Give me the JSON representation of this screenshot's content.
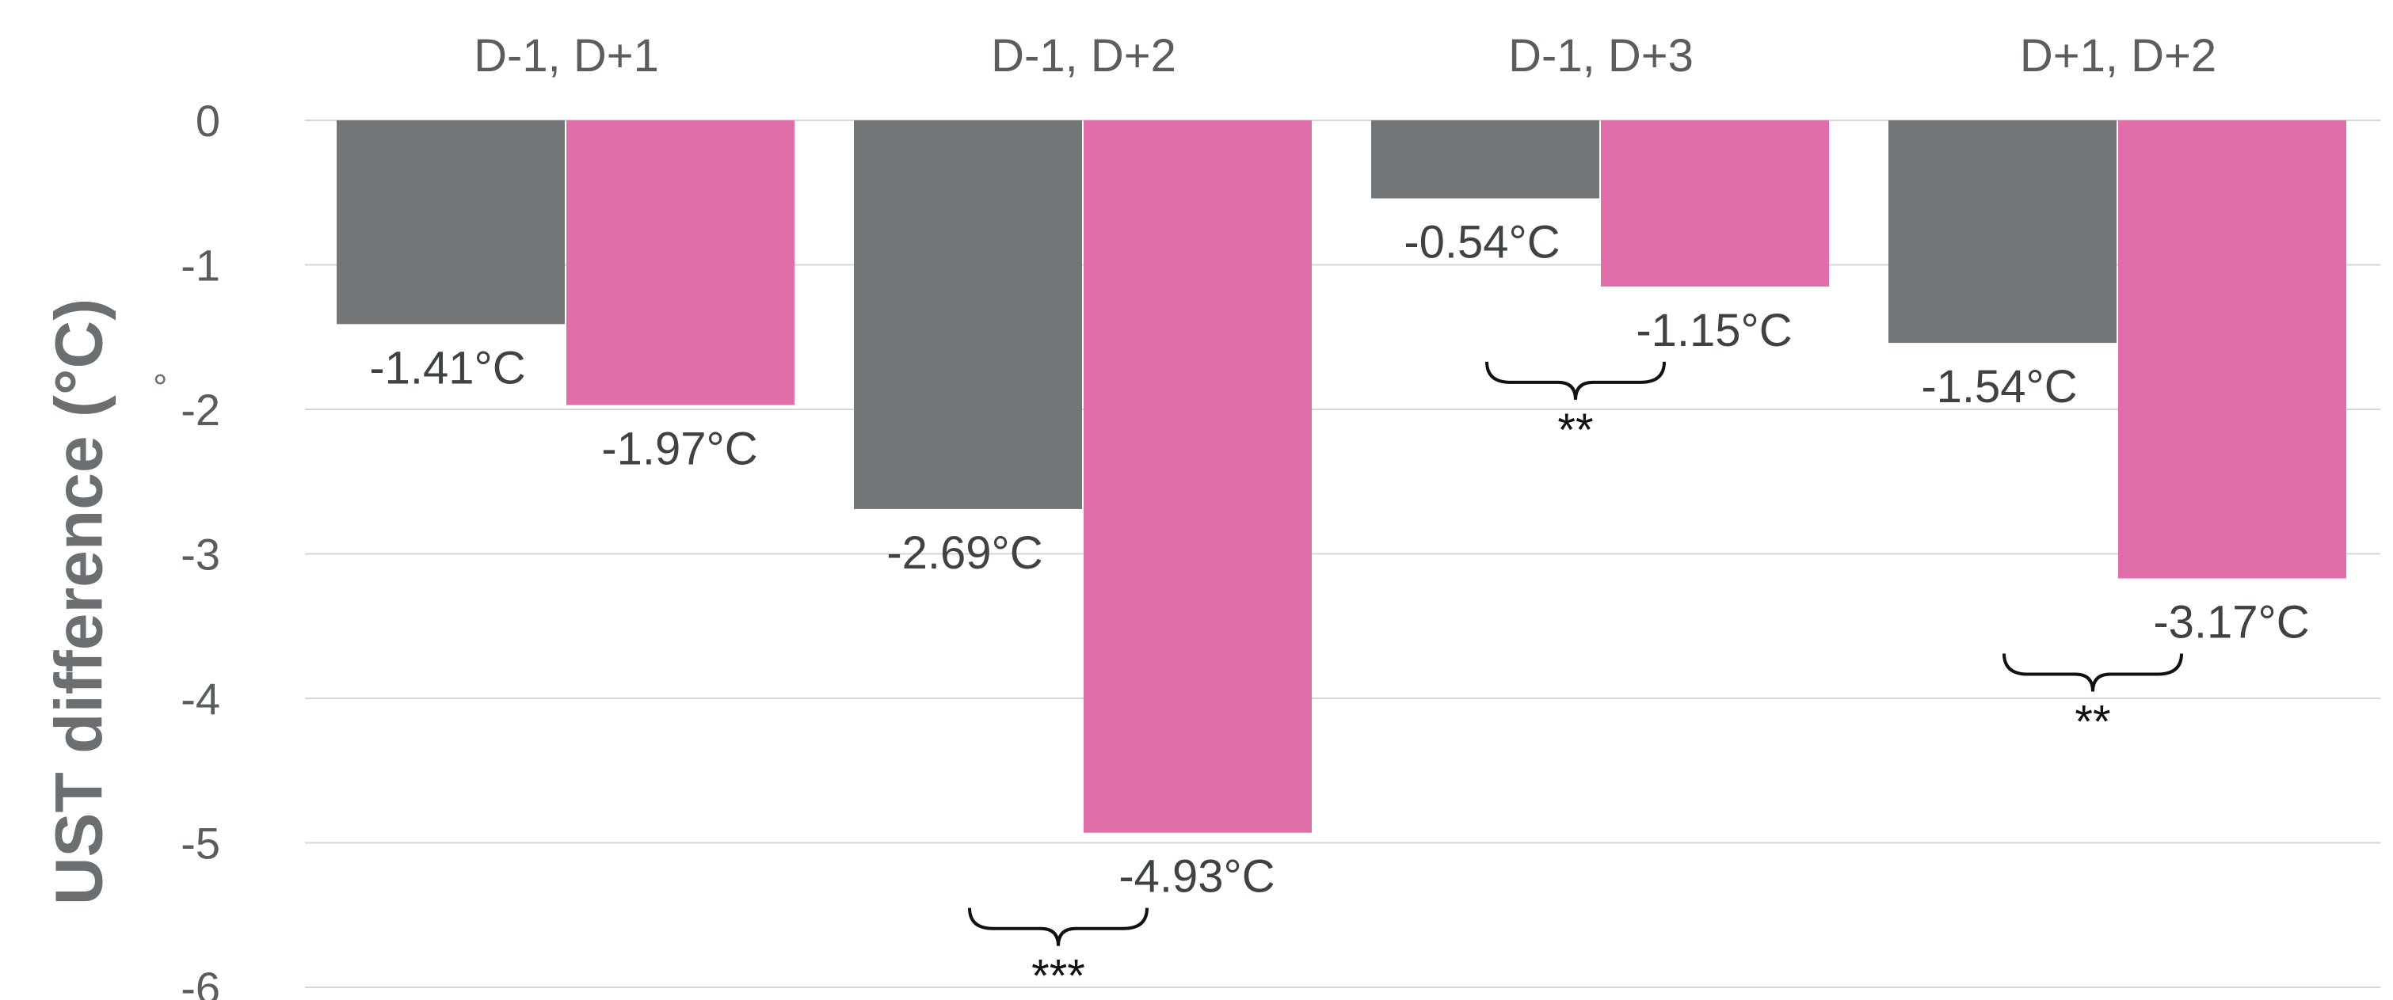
{
  "chart_data": {
    "type": "bar",
    "categories": [
      "D-1, D+1",
      "D-1, D+2",
      "D-1, D+3",
      "D+1, D+2"
    ],
    "series": [
      {
        "color": "#737679",
        "values": [
          -1.41,
          -2.69,
          -0.54,
          -1.54
        ]
      },
      {
        "color": "#e06fa9",
        "values": [
          -1.97,
          -4.93,
          -1.15,
          -3.17
        ]
      }
    ],
    "data_labels": [
      [
        "-1.41°C",
        "-2.69°C",
        "-0.54°C",
        "-1.54°C"
      ],
      [
        "-1.97°C",
        "-4.93°C",
        "-1.15°C",
        "-3.17°C"
      ]
    ],
    "significance": [
      "",
      "***",
      "**",
      "**"
    ],
    "ylabel": "UST difference (°C)",
    "axis_mark": "°",
    "yticks": [
      0,
      -1,
      -2,
      -3,
      -4,
      -5,
      -6
    ],
    "ylim": [
      -6,
      0
    ],
    "grid": true,
    "category_axis_position": "top"
  }
}
